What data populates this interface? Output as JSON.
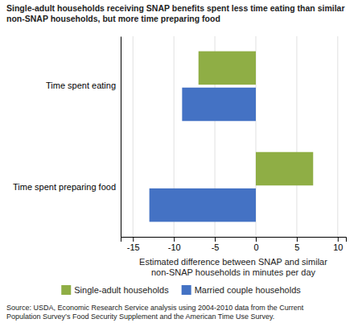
{
  "chart_data": {
    "type": "bar",
    "orientation": "horizontal",
    "title": "Single-adult households receiving SNAP benefits spent less time eating than similar\nnon-SNAP households, but more time preparing food",
    "categories": [
      "Time spent eating",
      "Time spent preparing food"
    ],
    "series": [
      {
        "name": "Single-adult households",
        "color": "#8fae45",
        "values": [
          -7,
          7
        ]
      },
      {
        "name": "Married couple households",
        "color": "#4472c4",
        "values": [
          -9,
          -13
        ]
      }
    ],
    "xlim": [
      -16.5,
      11
    ],
    "xticks": [
      -15,
      -10,
      -5,
      0,
      5,
      10
    ],
    "xlabel": "Estimated difference between SNAP and similar\nnon-SNAP households in minutes per day",
    "grid": true,
    "legend": "bottom",
    "annotations": [
      "Source: USDA, Economic Research Service analysis using 2004-2010 data from the Current\nPopulation Survey’s Food Security Supplement and the American Time Use Survey."
    ]
  }
}
